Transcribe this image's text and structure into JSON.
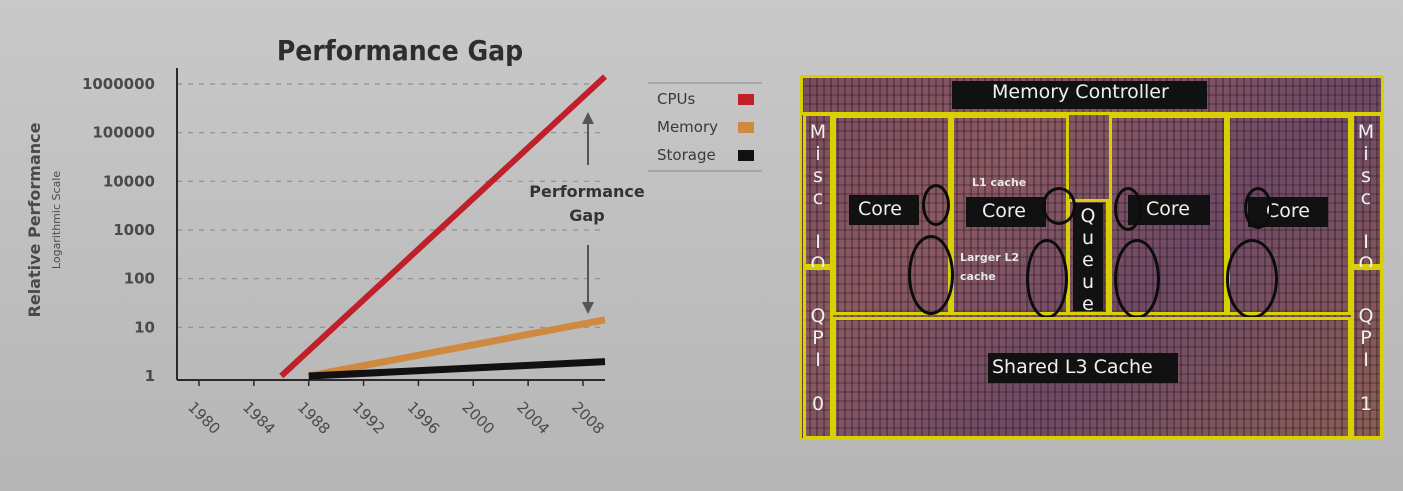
{
  "chart_data": {
    "type": "line",
    "title": "Performance Gap",
    "ylabel": "Relative Performance",
    "ylabel_sub": "Logarithmic Scale",
    "yscale": "log",
    "ylim": [
      1,
      1000000
    ],
    "xlim": [
      1978,
      2010
    ],
    "yticks": [
      "1000000",
      "100000",
      "10000",
      "1000",
      "100",
      "10",
      "1"
    ],
    "xticks": [
      "1980",
      "1984",
      "1988",
      "1992",
      "1996",
      "2000",
      "2004",
      "2008"
    ],
    "grid": "horizontal dashed",
    "legend_position": "top-right",
    "series": [
      {
        "name": "CPUs",
        "color": "#c0202a",
        "x": [
          1986,
          2010
        ],
        "y": [
          1,
          1800000
        ]
      },
      {
        "name": "Memory",
        "color": "#d08a40",
        "x": [
          1988,
          2010
        ],
        "y": [
          1,
          15
        ]
      },
      {
        "name": "Storage",
        "color": "#111111",
        "x": [
          1988,
          2010
        ],
        "y": [
          1,
          2
        ]
      }
    ],
    "annotation": {
      "line1": "Performance",
      "line2": "Gap"
    }
  },
  "die": {
    "memory_controller": "Memory Controller",
    "misc_io_left": "Misc IO",
    "misc_io_right": "Misc IO",
    "qpi_left": "QPI 0",
    "qpi_right": "QPI 1",
    "core_labels": [
      "Core",
      "Core",
      "Core",
      "Core"
    ],
    "l1_label": "L1 cache",
    "l2_label_line1": "Larger L2",
    "l2_label_line2": "cache",
    "queue": "Queue",
    "l3": "Shared L3 Cache"
  }
}
